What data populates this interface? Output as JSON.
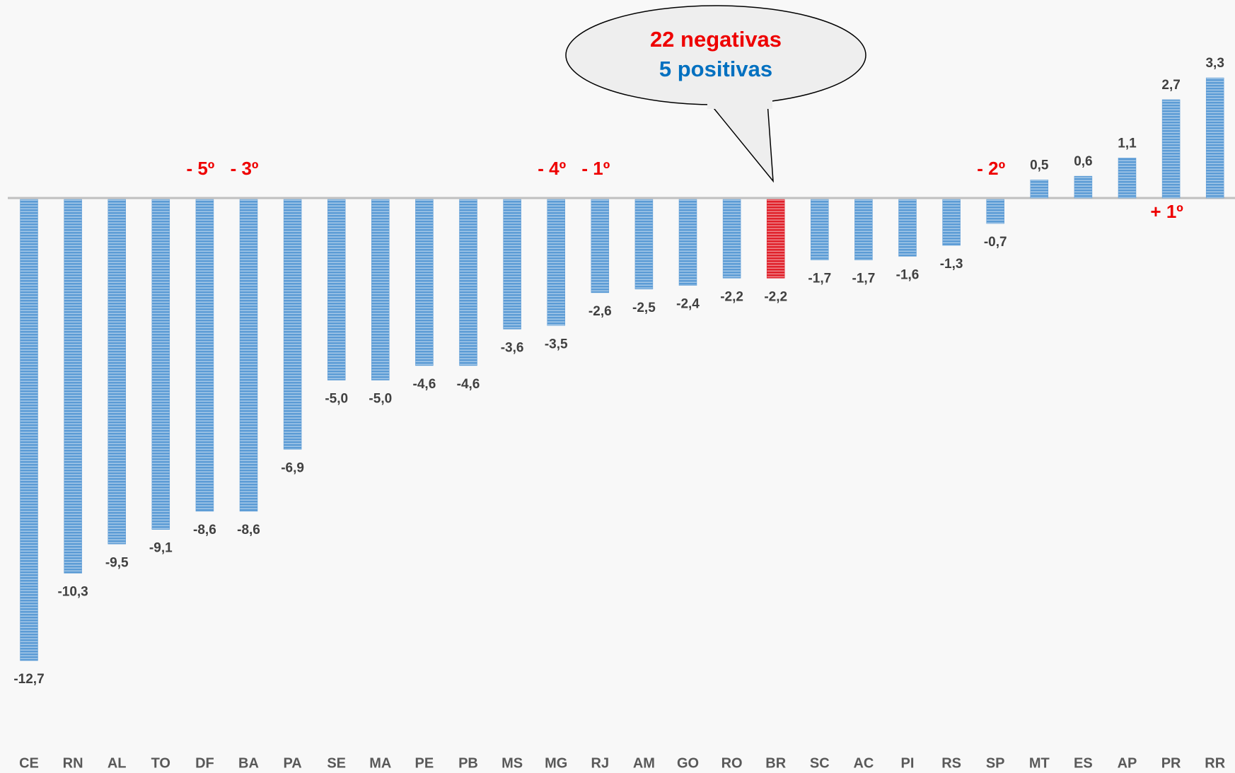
{
  "chart_data": {
    "type": "bar",
    "categories": [
      "CE",
      "RN",
      "AL",
      "TO",
      "DF",
      "BA",
      "PA",
      "SE",
      "MA",
      "PE",
      "PB",
      "MS",
      "MG",
      "RJ",
      "AM",
      "GO",
      "RO",
      "BR",
      "SC",
      "AC",
      "PI",
      "RS",
      "SP",
      "MT",
      "ES",
      "AP",
      "PR",
      "RR"
    ],
    "values": [
      -12.7,
      -10.3,
      -9.5,
      -9.1,
      -8.6,
      -8.6,
      -6.9,
      -5.0,
      -5.0,
      -4.6,
      -4.6,
      -3.6,
      -3.5,
      -2.6,
      -2.5,
      -2.4,
      -2.2,
      -2.2,
      -1.7,
      -1.7,
      -1.6,
      -1.3,
      -0.7,
      0.5,
      0.6,
      1.1,
      2.7,
      3.3
    ],
    "value_labels": [
      "-12,7",
      "-10,3",
      "-9,5",
      "-9,1",
      "-8,6",
      "-8,6",
      "-6,9",
      "-5,0",
      "-5,0",
      "-4,6",
      "-4,6",
      "-3,6",
      "-3,5",
      "-2,6",
      "-2,5",
      "-2,4",
      "-2,2",
      "-2,2",
      "-1,7",
      "-1,7",
      "-1,6",
      "-1,3",
      "-0,7",
      "0,5",
      "0,6",
      "1,1",
      "2,7",
      "3,3"
    ],
    "colors": [
      "#5b9bd5",
      "#5b9bd5",
      "#5b9bd5",
      "#5b9bd5",
      "#5b9bd5",
      "#5b9bd5",
      "#5b9bd5",
      "#5b9bd5",
      "#5b9bd5",
      "#5b9bd5",
      "#5b9bd5",
      "#5b9bd5",
      "#5b9bd5",
      "#5b9bd5",
      "#5b9bd5",
      "#5b9bd5",
      "#5b9bd5",
      "#e0202a",
      "#5b9bd5",
      "#5b9bd5",
      "#5b9bd5",
      "#5b9bd5",
      "#5b9bd5",
      "#5b9bd5",
      "#5b9bd5",
      "#5b9bd5",
      "#5b9bd5",
      "#5b9bd5"
    ],
    "annotations": [
      {
        "text": "- 5º",
        "category": "DF"
      },
      {
        "text": "- 3º",
        "category": "BA"
      },
      {
        "text": "- 4º",
        "category": "MG"
      },
      {
        "text": "- 1º",
        "category": "RJ"
      },
      {
        "text": "- 2º",
        "category": "SP"
      },
      {
        "text": "+ 1º",
        "category": "PR"
      }
    ],
    "callout": {
      "negative_text": "22 negativas",
      "positive_text": "5 positivas"
    }
  }
}
